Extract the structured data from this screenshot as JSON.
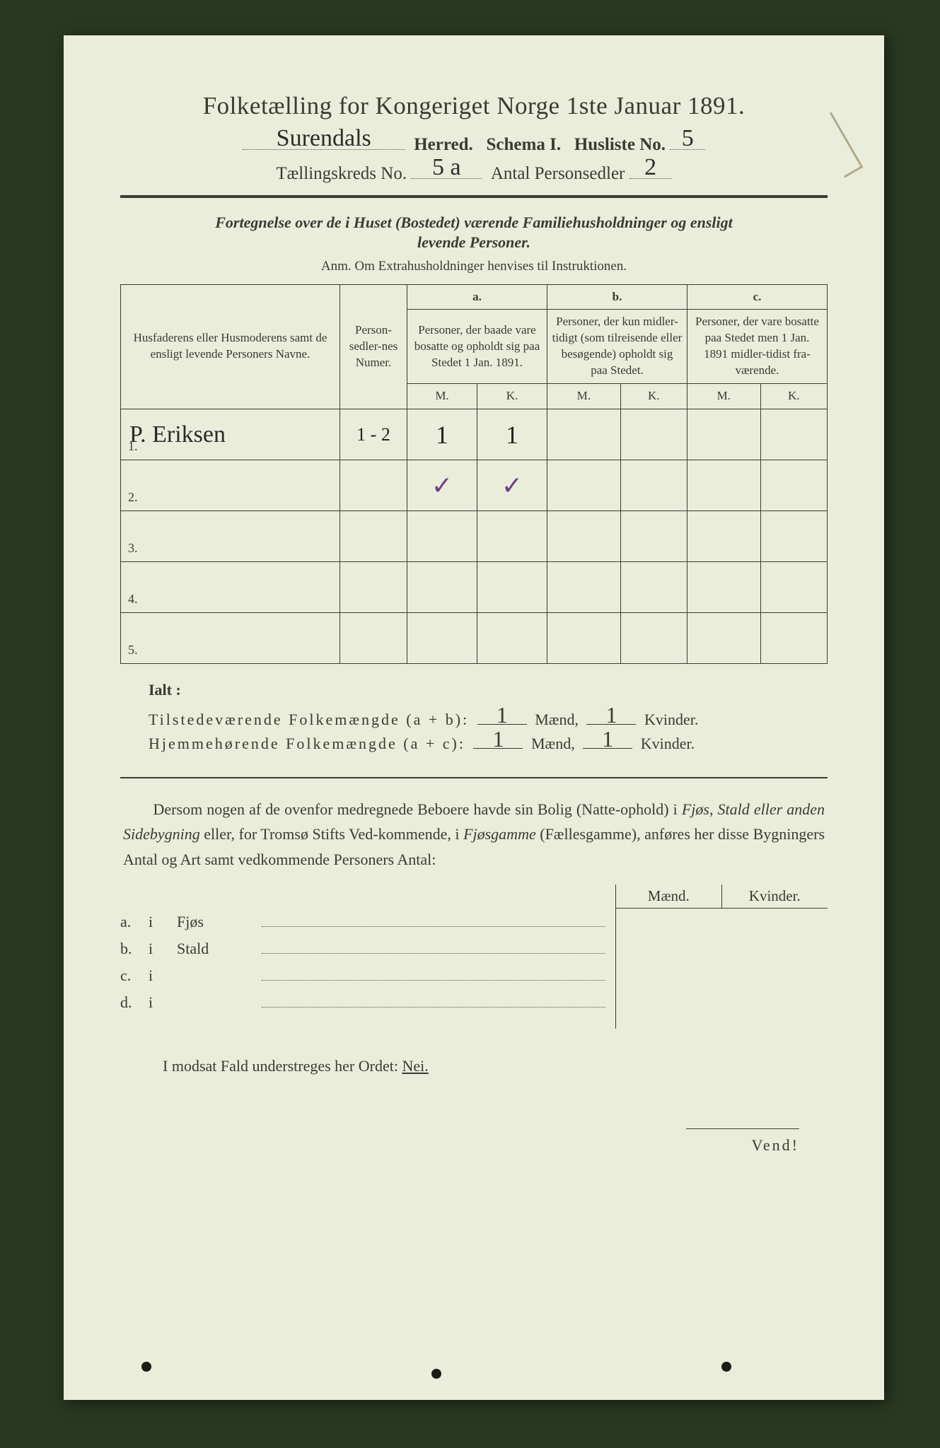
{
  "colors": {
    "paper": "#e9edd9",
    "ink": "#3b3b32",
    "background": "#2a3820",
    "handwriting": "#2b2b2b",
    "purple_pencil": "#6b3f88"
  },
  "header": {
    "title": "Folketælling for Kongeriget Norge 1ste Januar 1891.",
    "herred_handwritten": "Surendals",
    "herred_label": "Herred.",
    "schema_label": "Schema I.",
    "husliste_label": "Husliste No.",
    "husliste_no": "5",
    "kreds_label": "Tællingskreds No.",
    "kreds_no": "5 a",
    "antal_label": "Antal Personsedler",
    "antal_val": "2"
  },
  "intro": {
    "line1": "Fortegnelse over de i Huset (Bostedet) værende Familiehusholdninger og ensligt",
    "line2": "levende Personer.",
    "anm": "Anm.  Om Extrahusholdninger henvises til Instruktionen."
  },
  "table": {
    "col_names": "Husfaderens eller Husmoderens samt de ensligt levende Personers Navne.",
    "col_numer": "Person-sedler-nes Numer.",
    "group_a_letter": "a.",
    "group_a": "Personer, der baade vare bosatte og opholdt sig paa Stedet 1 Jan. 1891.",
    "group_b_letter": "b.",
    "group_b": "Personer, der kun midler-tidigt (som tilreisende eller besøgende) opholdt sig paa Stedet.",
    "group_c_letter": "c.",
    "group_c": "Personer, der vare bosatte paa Stedet men 1 Jan. 1891 midler-tidist fra-værende.",
    "sub_m": "M.",
    "sub_k": "K.",
    "rows": [
      {
        "n": "1.",
        "name_hw": "P. Eriksen",
        "numer": "1 - 2",
        "aM": "1",
        "aK": "1",
        "bM": "",
        "bK": "",
        "cM": "",
        "cK": ""
      },
      {
        "n": "2.",
        "name_hw": "",
        "numer": "",
        "aM": "✓",
        "aK": "✓",
        "bM": "",
        "bK": "",
        "cM": "",
        "cK": "",
        "purple": true
      },
      {
        "n": "3.",
        "name_hw": "",
        "numer": "",
        "aM": "",
        "aK": "",
        "bM": "",
        "bK": "",
        "cM": "",
        "cK": ""
      },
      {
        "n": "4.",
        "name_hw": "",
        "numer": "",
        "aM": "",
        "aK": "",
        "bM": "",
        "bK": "",
        "cM": "",
        "cK": ""
      },
      {
        "n": "5.",
        "name_hw": "",
        "numer": "",
        "aM": "",
        "aK": "",
        "bM": "",
        "bK": "",
        "cM": "",
        "cK": ""
      }
    ]
  },
  "totals": {
    "ialt": "Ialt :",
    "tilstede_label": "Tilstedeværende Folkemængde (a + b):",
    "hjemme_label": "Hjemmehørende Folkemængde (a + c):",
    "maend": "Mænd,",
    "kvinder": "Kvinder.",
    "t_m": "1",
    "t_k": "1",
    "h_m": "1",
    "h_k": "1"
  },
  "para": {
    "text1": "Dersom nogen af de ovenfor medregnede Beboere havde sin Bolig (Natte-ophold) i ",
    "it1": "Fjøs, Stald eller anden Sidebygning",
    "text2": " eller, for Tromsø Stifts Ved-kommende, i ",
    "it2": "Fjøsgamme",
    "text3": " (Fællesgamme), anføres her disse Bygningers Antal og Art samt vedkommende Personers Antal:"
  },
  "mk": {
    "maend": "Mænd.",
    "kvinder": "Kvinder."
  },
  "listrows": [
    {
      "letter": "a.",
      "i": "i",
      "label": "Fjøs"
    },
    {
      "letter": "b.",
      "i": "i",
      "label": "Stald"
    },
    {
      "letter": "c.",
      "i": "i",
      "label": ""
    },
    {
      "letter": "d.",
      "i": "i",
      "label": ""
    }
  ],
  "nei": {
    "text": "I modsat Fald understreges her Ordet: ",
    "word": "Nei."
  },
  "vend": "Vend!"
}
